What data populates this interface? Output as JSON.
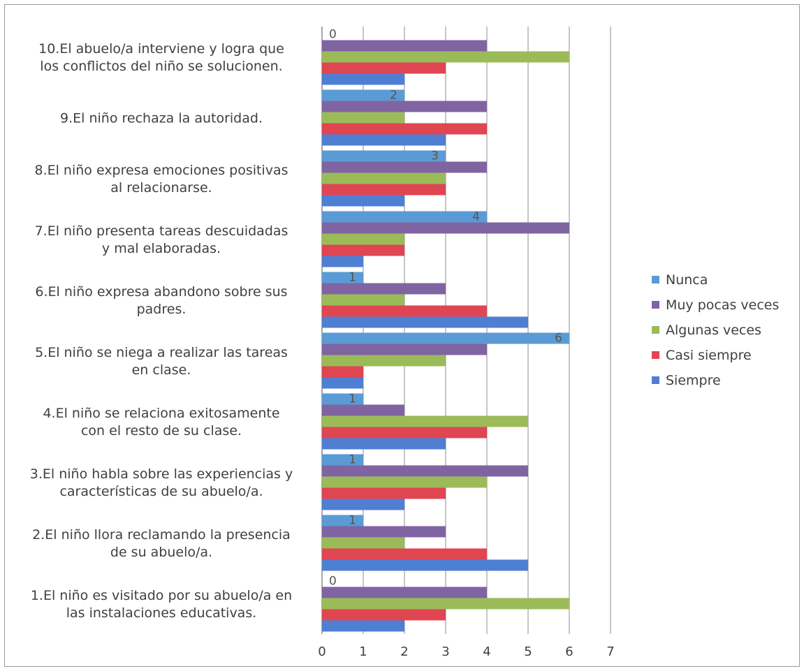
{
  "chart_data": {
    "type": "bar",
    "orientation": "horizontal",
    "title": "",
    "xlabel": "",
    "ylabel": "",
    "xlim": [
      0,
      7
    ],
    "x_ticks": [
      "0",
      "1",
      "2",
      "3",
      "4",
      "5",
      "6",
      "7"
    ],
    "grid": true,
    "legend_position": "right",
    "categories": [
      [
        "1.El niño es visitado por su abuelo/a en",
        "las instalaciones educativas."
      ],
      [
        "2.El niño llora reclamando la presencia",
        "de su abuelo/a."
      ],
      [
        "3.El niño habla sobre las experiencias y",
        "características de su abuelo/a."
      ],
      [
        "4.El niño se relaciona exitosamente",
        "con el resto de su clase."
      ],
      [
        "5.El niño se niega a realizar las tareas",
        "en clase."
      ],
      [
        "6.El niño expresa abandono sobre sus",
        "padres."
      ],
      [
        "7.El niño presenta tareas descuidadas",
        "y mal elaboradas."
      ],
      [
        "8.El niño expresa emociones positivas",
        "al relacionarse."
      ],
      [
        "9.El niño rechaza la autoridad."
      ],
      [
        "10.El abuelo/a interviene y logra que",
        "los conflictos del niño se solucionen."
      ]
    ],
    "series": [
      {
        "name": "Nunca",
        "color": "#5b9bd5",
        "values": [
          0,
          1,
          1,
          1,
          6,
          1,
          4,
          3,
          2,
          0
        ],
        "show_labels": true
      },
      {
        "name": "Muy pocas veces",
        "color": "#8064a2",
        "values": [
          4,
          3,
          5,
          2,
          4,
          3,
          6,
          4,
          4,
          4
        ]
      },
      {
        "name": "Algunas veces",
        "color": "#9bbb59",
        "values": [
          6,
          2,
          4,
          5,
          3,
          2,
          2,
          3,
          2,
          6
        ]
      },
      {
        "name": "Casi siempre",
        "color": "#e04552",
        "values": [
          3,
          4,
          3,
          4,
          1,
          4,
          2,
          3,
          4,
          3
        ]
      },
      {
        "name": "Siempre",
        "color": "#4f7fd2",
        "values": [
          2,
          5,
          2,
          3,
          1,
          5,
          1,
          2,
          3,
          2
        ]
      }
    ]
  }
}
